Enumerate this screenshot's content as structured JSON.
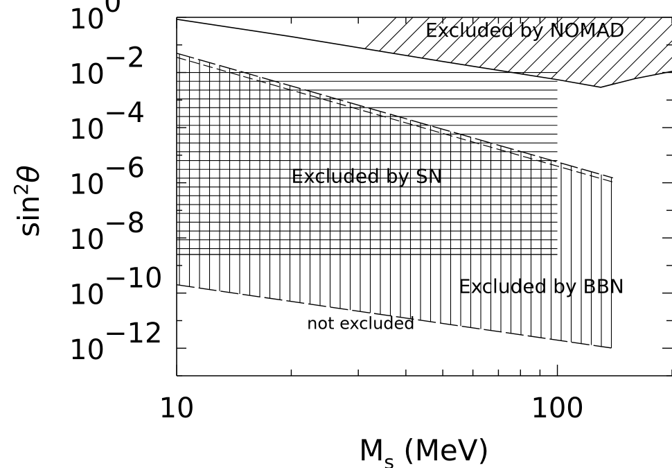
{
  "chart_data": {
    "type": "area",
    "title": "",
    "xlabel": {
      "main": "M",
      "sub": "s",
      "unit": "(MeV)"
    },
    "ylabel": {
      "main": "sin",
      "sup": "2",
      "symbol": "θ"
    },
    "x_scale": "log",
    "y_scale": "log",
    "xlim": [
      10,
      200
    ],
    "ylim": [
      1e-13,
      1
    ],
    "x_ticks": [
      {
        "value": 10,
        "label": "10"
      },
      {
        "value": 100,
        "label": "100"
      }
    ],
    "y_ticks": [
      {
        "value": 1,
        "base": "10",
        "exp": "0"
      },
      {
        "value": 0.01,
        "base": "10",
        "exp": "−2"
      },
      {
        "value": 0.0001,
        "base": "10",
        "exp": "−4"
      },
      {
        "value": 1e-06,
        "base": "10",
        "exp": "−6"
      },
      {
        "value": 1e-08,
        "base": "10",
        "exp": "−8"
      },
      {
        "value": 1e-10,
        "base": "10",
        "exp": "−10"
      },
      {
        "value": 1e-12,
        "base": "10",
        "exp": "−12"
      }
    ],
    "regions": [
      {
        "name": "NOMAD",
        "label": "Excluded by NOMAD",
        "label_at": {
          "x": 45,
          "y": 0.2
        },
        "hatch": "diagonal",
        "boundary": [
          {
            "x": 10,
            "y": 0.85
          },
          {
            "x": 20,
            "y": 0.2
          },
          {
            "x": 50,
            "y": 0.025
          },
          {
            "x": 100,
            "y": 0.0055
          },
          {
            "x": 130,
            "y": 0.0029
          },
          {
            "x": 160,
            "y": 0.006
          },
          {
            "x": 200,
            "y": 0.011
          }
        ]
      },
      {
        "name": "SN",
        "label": "Excluded by SN",
        "label_at": {
          "x": 20,
          "y": 1e-06
        },
        "hatch": "horizontal",
        "x_range": [
          10,
          100
        ],
        "y_range": [
          2.5e-09,
          0.01
        ]
      },
      {
        "name": "BBN",
        "label": "Excluded by BBN",
        "label_at": {
          "x": 55,
          "y": 1e-10
        },
        "hatch": "vertical",
        "upper": [
          {
            "x": 10,
            "y": 0.05
          },
          {
            "x": 140,
            "y": 1.5e-06
          }
        ],
        "lower": [
          {
            "x": 10,
            "y": 2e-10
          },
          {
            "x": 140,
            "y": 1e-12
          }
        ]
      }
    ],
    "annotations": [
      {
        "text": "not excluded",
        "x": 22,
        "y": 5e-12
      }
    ],
    "grid": false,
    "legend": "none"
  }
}
